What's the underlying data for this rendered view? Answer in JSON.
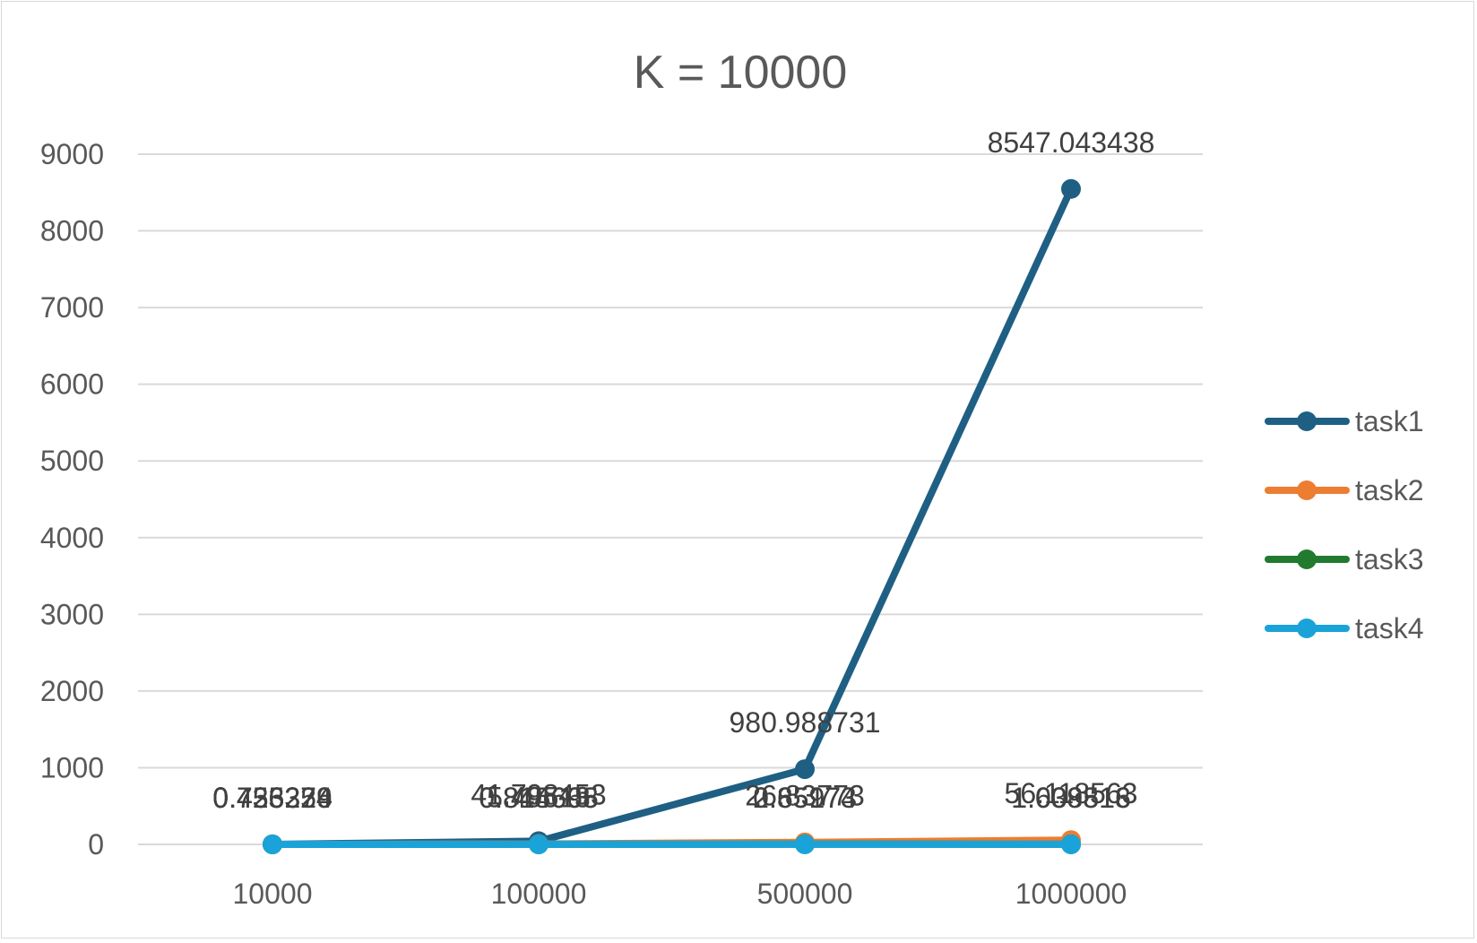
{
  "chart_data": {
    "type": "line",
    "title": "K = 10000",
    "xlabel": "",
    "ylabel": "",
    "categories": [
      "10000",
      "100000",
      "500000",
      "1000000"
    ],
    "ylim": [
      0,
      9000
    ],
    "yticks": [
      0,
      1000,
      2000,
      3000,
      4000,
      5000,
      6000,
      7000,
      8000,
      9000
    ],
    "grid": true,
    "legend_position": "right",
    "series": [
      {
        "name": "task1",
        "color": "#1f5f84",
        "values": [
          0.733374,
          41.798453,
          980.988731,
          8547.043438
        ],
        "labels": [
          "0.733374",
          "41.798453",
          "980.988731",
          "8547.043438"
        ]
      },
      {
        "name": "task2",
        "color": "#ed7d31",
        "values": [
          0.425329,
          5.49513,
          26.83773,
          56.118563
        ],
        "labels": [
          "0.425329",
          "5.49513",
          "26.83773",
          "56.118563"
        ]
      },
      {
        "name": "task3",
        "color": "#217a2e",
        "values": [
          0.456326,
          0.845665,
          2.65174,
          1.609816
        ],
        "labels": [
          "0.456326",
          "0.845665",
          "2.65174",
          "1.609816"
        ]
      },
      {
        "name": "task4",
        "color": "#1aa3d9",
        "values": [
          0.436254,
          0.814698,
          0.85973,
          1.038513
        ],
        "labels": [
          "0.436254",
          "0.814698",
          "0.85973",
          "1.038513"
        ]
      }
    ]
  }
}
